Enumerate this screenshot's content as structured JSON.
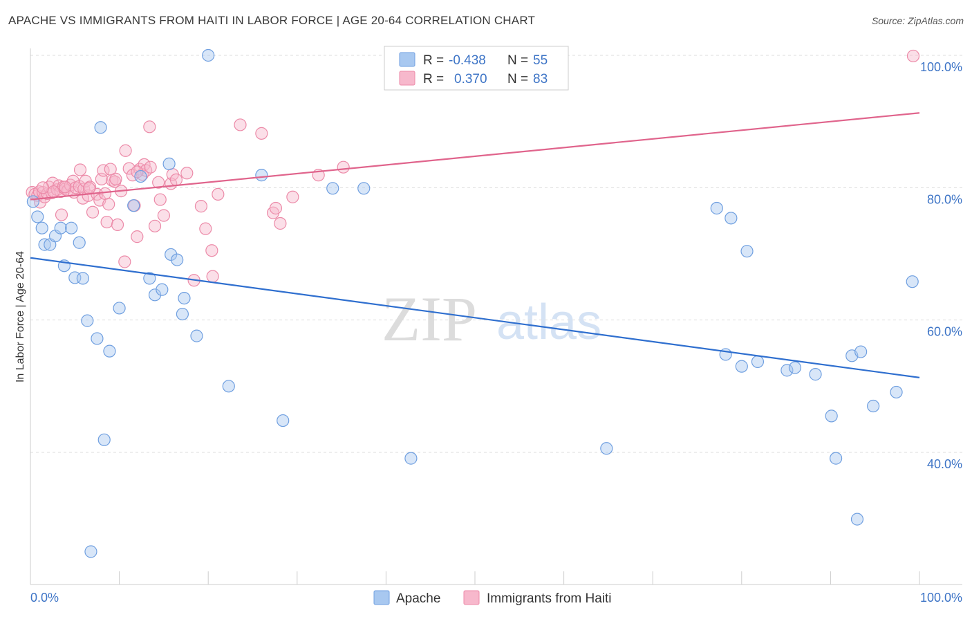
{
  "title": "APACHE VS IMMIGRANTS FROM HAITI IN LABOR FORCE | AGE 20-64 CORRELATION CHART",
  "source": "Source: ZipAtlas.com",
  "watermark": {
    "part1": "ZIP",
    "part2": "atlas"
  },
  "colors": {
    "apache_fill": "#a8c8f0",
    "apache_stroke": "#6f9fe0",
    "apache_line": "#2f6fcf",
    "haiti_fill": "#f7b8cc",
    "haiti_stroke": "#ec8aa8",
    "haiti_line": "#e0648c",
    "axis_text": "#3d74c6",
    "grid": "#dddddd"
  },
  "legend": {
    "rows": [
      {
        "r_label": "R =",
        "r_value": "-0.438",
        "n_label": "N =",
        "n_value": "55"
      },
      {
        "r_label": "R =",
        "r_value": "0.370",
        "n_label": "N =",
        "n_value": "83"
      }
    ]
  },
  "bottom_legend": {
    "apache": "Apache",
    "haiti": "Immigrants from Haiti"
  },
  "chart_data": {
    "type": "scatter",
    "title": "APACHE VS IMMIGRANTS FROM HAITI IN LABOR FORCE | AGE 20-64 CORRELATION CHART",
    "xlabel": "",
    "ylabel": "In Labor Force | Age 20-64",
    "xlim": [
      0,
      100
    ],
    "ylim": [
      20,
      103
    ],
    "x_tick_labels": [
      "0.0%",
      "100.0%"
    ],
    "y_ticks": [
      40,
      60,
      80,
      100
    ],
    "y_tick_labels": [
      "40.0%",
      "60.0%",
      "80.0%",
      "100.0%"
    ],
    "series": [
      {
        "name": "Apache",
        "r": -0.438,
        "n": 55,
        "trend": [
          [
            0,
            69.4
          ],
          [
            100,
            51.3
          ]
        ],
        "points": [
          [
            0.3,
            77.9
          ],
          [
            0.8,
            75.6
          ],
          [
            1.3,
            73.9
          ],
          [
            1.6,
            71.4
          ],
          [
            2.2,
            71.4
          ],
          [
            2.8,
            72.7
          ],
          [
            3.4,
            73.9
          ],
          [
            3.8,
            68.2
          ],
          [
            4.6,
            73.9
          ],
          [
            5.0,
            66.4
          ],
          [
            5.5,
            71.7
          ],
          [
            5.9,
            66.3
          ],
          [
            6.4,
            59.9
          ],
          [
            7.5,
            57.2
          ],
          [
            7.9,
            89.1
          ],
          [
            8.3,
            41.9
          ],
          [
            8.9,
            55.3
          ],
          [
            10.0,
            61.8
          ],
          [
            11.6,
            77.3
          ],
          [
            12.4,
            81.7
          ],
          [
            13.4,
            66.3
          ],
          [
            14.0,
            63.8
          ],
          [
            14.8,
            64.6
          ],
          [
            15.6,
            83.6
          ],
          [
            15.8,
            69.9
          ],
          [
            16.5,
            69.1
          ],
          [
            17.1,
            60.9
          ],
          [
            17.3,
            63.3
          ],
          [
            18.7,
            57.6
          ],
          [
            20.0,
            100.0
          ],
          [
            22.3,
            50.0
          ],
          [
            26.0,
            81.9
          ],
          [
            28.4,
            44.8
          ],
          [
            34.0,
            79.9
          ],
          [
            37.5,
            79.9
          ],
          [
            42.8,
            39.1
          ],
          [
            64.8,
            40.6
          ],
          [
            77.2,
            76.9
          ],
          [
            78.2,
            54.8
          ],
          [
            78.8,
            75.4
          ],
          [
            80.0,
            53.0
          ],
          [
            80.6,
            70.4
          ],
          [
            81.8,
            53.7
          ],
          [
            85.1,
            52.4
          ],
          [
            86.0,
            52.8
          ],
          [
            88.3,
            51.8
          ],
          [
            90.1,
            45.5
          ],
          [
            90.6,
            39.1
          ],
          [
            92.4,
            54.6
          ],
          [
            93.0,
            29.9
          ],
          [
            93.4,
            55.2
          ],
          [
            94.8,
            47.0
          ],
          [
            97.4,
            49.1
          ],
          [
            99.2,
            65.8
          ],
          [
            6.8,
            25.0
          ]
        ]
      },
      {
        "name": "Immigrants from Haiti",
        "r": 0.37,
        "n": 83,
        "trend": [
          [
            0,
            78.2
          ],
          [
            100,
            91.3
          ]
        ],
        "points": [
          [
            0.2,
            79.3
          ],
          [
            0.5,
            79.0
          ],
          [
            0.8,
            78.8
          ],
          [
            1.0,
            79.4
          ],
          [
            1.1,
            77.8
          ],
          [
            1.4,
            79.3
          ],
          [
            1.6,
            78.6
          ],
          [
            1.9,
            79.1
          ],
          [
            2.1,
            80.1
          ],
          [
            2.4,
            79.2
          ],
          [
            2.5,
            80.7
          ],
          [
            3.0,
            79.7
          ],
          [
            3.2,
            80.3
          ],
          [
            3.4,
            79.4
          ],
          [
            3.5,
            75.9
          ],
          [
            3.7,
            80.1
          ],
          [
            3.9,
            79.8
          ],
          [
            4.2,
            79.6
          ],
          [
            4.5,
            80.4
          ],
          [
            4.8,
            81.0
          ],
          [
            4.9,
            79.3
          ],
          [
            5.1,
            80.0
          ],
          [
            5.5,
            80.2
          ],
          [
            5.6,
            82.7
          ],
          [
            5.9,
            78.4
          ],
          [
            6.0,
            79.8
          ],
          [
            6.2,
            81.0
          ],
          [
            6.5,
            78.8
          ],
          [
            6.7,
            80.1
          ],
          [
            7.0,
            76.3
          ],
          [
            7.5,
            79.0
          ],
          [
            7.8,
            78.1
          ],
          [
            8.0,
            81.3
          ],
          [
            8.2,
            82.6
          ],
          [
            8.4,
            79.1
          ],
          [
            8.6,
            74.8
          ],
          [
            8.8,
            77.5
          ],
          [
            9.0,
            82.8
          ],
          [
            9.2,
            81.1
          ],
          [
            9.5,
            80.9
          ],
          [
            9.8,
            74.4
          ],
          [
            10.2,
            79.5
          ],
          [
            10.6,
            68.8
          ],
          [
            10.7,
            85.6
          ],
          [
            11.1,
            82.9
          ],
          [
            11.5,
            81.9
          ],
          [
            11.7,
            77.3
          ],
          [
            12.0,
            72.6
          ],
          [
            12.3,
            82.8
          ],
          [
            12.6,
            82.0
          ],
          [
            12.8,
            83.5
          ],
          [
            13.0,
            82.6
          ],
          [
            13.5,
            83.1
          ],
          [
            13.4,
            89.2
          ],
          [
            14.0,
            74.2
          ],
          [
            14.4,
            80.8
          ],
          [
            14.6,
            78.2
          ],
          [
            15.0,
            75.8
          ],
          [
            15.8,
            80.6
          ],
          [
            16.0,
            82.0
          ],
          [
            16.4,
            81.2
          ],
          [
            17.6,
            82.2
          ],
          [
            18.4,
            66.0
          ],
          [
            19.2,
            77.2
          ],
          [
            19.7,
            73.8
          ],
          [
            20.4,
            70.5
          ],
          [
            20.5,
            66.6
          ],
          [
            21.1,
            79.0
          ],
          [
            23.6,
            89.5
          ],
          [
            26.0,
            88.2
          ],
          [
            27.3,
            76.2
          ],
          [
            27.6,
            76.9
          ],
          [
            28.1,
            74.6
          ],
          [
            29.5,
            78.6
          ],
          [
            32.4,
            81.9
          ],
          [
            35.2,
            83.1
          ],
          [
            99.3,
            99.9
          ],
          [
            3.9,
            80.1
          ],
          [
            6.6,
            79.9
          ],
          [
            2.6,
            79.4
          ],
          [
            9.6,
            81.3
          ],
          [
            12.0,
            82.4
          ],
          [
            1.4,
            80.0
          ]
        ]
      }
    ]
  }
}
